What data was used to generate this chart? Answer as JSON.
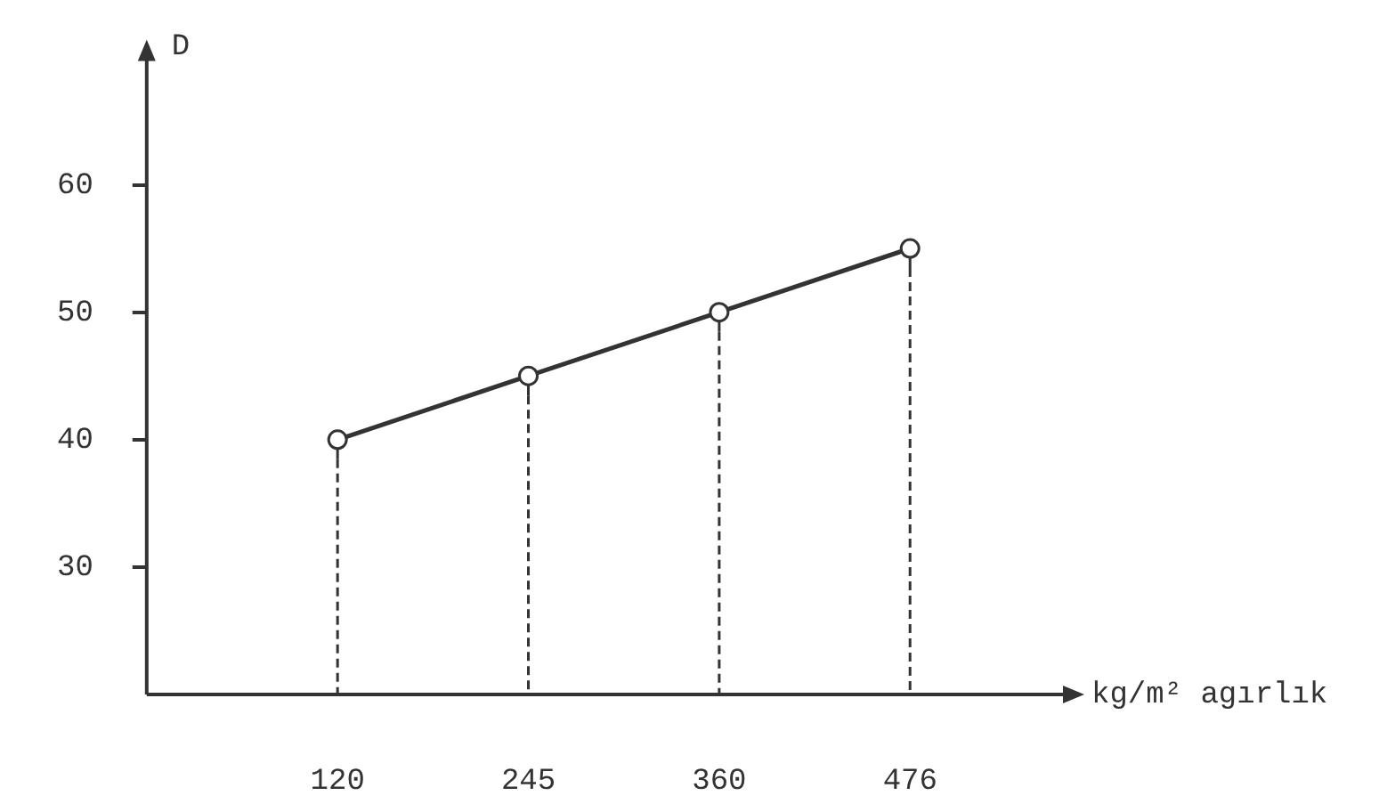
{
  "chart_data": {
    "type": "line",
    "xlabel": "kg/m² agırlık",
    "ylabel": "D",
    "categories": [
      "120",
      "245",
      "360",
      "476"
    ],
    "values": [
      40,
      45,
      50,
      55
    ],
    "color": "#333333",
    "ylim": [
      20,
      70
    ],
    "yticks": [
      {
        "value": 30,
        "label": "30"
      },
      {
        "value": 40,
        "label": "40"
      },
      {
        "value": 50,
        "label": "50"
      },
      {
        "value": 60,
        "label": "60"
      }
    ],
    "errors": [
      [
        20,
        40
      ],
      [
        20,
        45
      ],
      [
        20,
        50
      ],
      [
        20,
        55
      ]
    ],
    "grid": false,
    "legend": false,
    "marker": "circle",
    "line_style": "solid"
  }
}
